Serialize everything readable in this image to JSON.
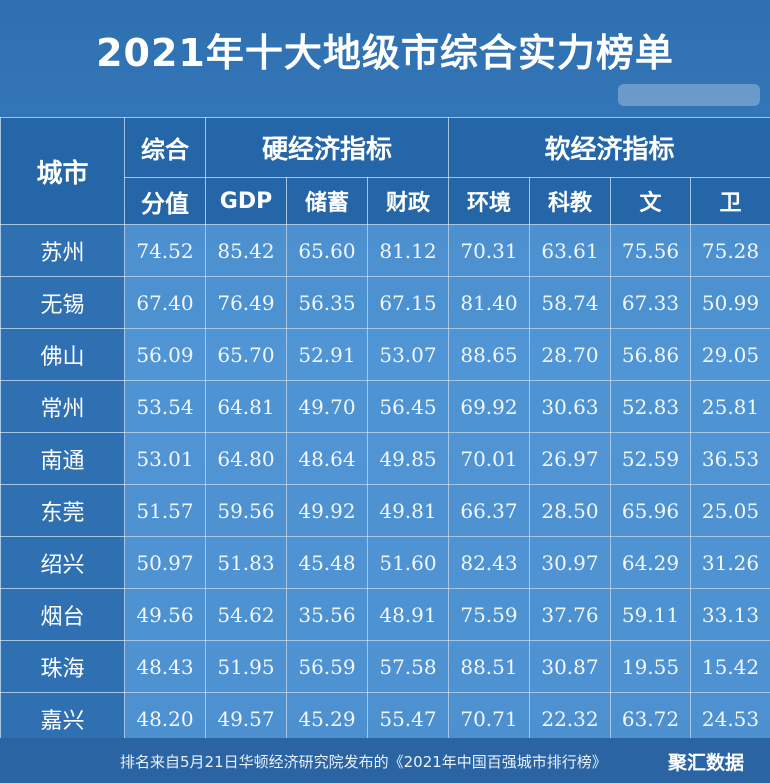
{
  "title": "2021年十大地级市综合实力榜单",
  "header": {
    "city": "城市",
    "score_line1": "综合",
    "score_line2": "分值",
    "hard_group": "硬经济指标",
    "soft_group": "软经济指标",
    "cols": [
      "GDP",
      "储蓄",
      "财政",
      "环境",
      "科教",
      "文",
      "卫"
    ]
  },
  "footer": {
    "note": "排名来自5月21日华顿经济研究院发布的《2021年中国百强城市排行榜》",
    "brand": "聚汇数据"
  },
  "colors": {
    "background": "#3b84c6",
    "header": "#2566a8",
    "text": "#ffffff"
  },
  "chart_data": {
    "type": "table",
    "title": "2021年十大地级市综合实力榜单",
    "columns": [
      "城市",
      "综合分值",
      "GDP",
      "储蓄",
      "财政",
      "环境",
      "科教",
      "文",
      "卫"
    ],
    "rows": [
      {
        "city": "苏州",
        "values": [
          "74.52",
          "85.42",
          "65.60",
          "81.12",
          "70.31",
          "63.61",
          "75.56",
          "75.28"
        ]
      },
      {
        "city": "无锡",
        "values": [
          "67.40",
          "76.49",
          "56.35",
          "67.15",
          "81.40",
          "58.74",
          "67.33",
          "50.99"
        ]
      },
      {
        "city": "佛山",
        "values": [
          "56.09",
          "65.70",
          "52.91",
          "53.07",
          "88.65",
          "28.70",
          "56.86",
          "29.05"
        ]
      },
      {
        "city": "常州",
        "values": [
          "53.54",
          "64.81",
          "49.70",
          "56.45",
          "69.92",
          "30.63",
          "52.83",
          "25.81"
        ]
      },
      {
        "city": "南通",
        "values": [
          "53.01",
          "64.80",
          "48.64",
          "49.85",
          "70.01",
          "26.97",
          "52.59",
          "36.53"
        ]
      },
      {
        "city": "东莞",
        "values": [
          "51.57",
          "59.56",
          "49.92",
          "49.81",
          "66.37",
          "28.50",
          "65.96",
          "25.05"
        ]
      },
      {
        "city": "绍兴",
        "values": [
          "50.97",
          "51.83",
          "45.48",
          "51.60",
          "82.43",
          "30.97",
          "64.29",
          "31.26"
        ]
      },
      {
        "city": "烟台",
        "values": [
          "49.56",
          "54.62",
          "35.56",
          "48.91",
          "75.59",
          "37.76",
          "59.11",
          "33.13"
        ]
      },
      {
        "city": "珠海",
        "values": [
          "48.43",
          "51.95",
          "56.59",
          "57.58",
          "88.51",
          "30.87",
          "19.55",
          "15.42"
        ]
      },
      {
        "city": "嘉兴",
        "values": [
          "48.20",
          "49.57",
          "45.29",
          "55.47",
          "70.71",
          "22.32",
          "63.72",
          "24.53"
        ]
      }
    ]
  }
}
